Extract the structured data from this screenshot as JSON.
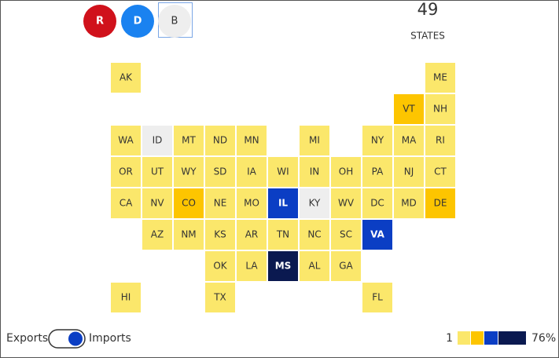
{
  "buttons": [
    {
      "label": "R",
      "color": "#d0111b"
    },
    {
      "label": "D",
      "color": "#1a82f0"
    },
    {
      "label": "B",
      "color": "#eeeeee"
    }
  ],
  "count": {
    "value": 49,
    "label": "STATES"
  },
  "states": [
    {
      "abbr": "AK",
      "color": "#fbe76b"
    },
    {
      "abbr": "ME",
      "color": "#fbe76b"
    },
    {
      "abbr": "VT",
      "color": "#fdc500"
    },
    {
      "abbr": "NH",
      "color": "#fbe76b"
    },
    {
      "abbr": "WA",
      "color": "#fbe76b"
    },
    {
      "abbr": "ID",
      "color": "#eeeeee"
    },
    {
      "abbr": "MT",
      "color": "#fbe76b"
    },
    {
      "abbr": "ND",
      "color": "#fbe76b"
    },
    {
      "abbr": "MN",
      "color": "#fbe76b"
    },
    {
      "abbr": "MI",
      "color": "#fbe76b"
    },
    {
      "abbr": "NY",
      "color": "#fbe76b"
    },
    {
      "abbr": "MA",
      "color": "#fbe76b"
    },
    {
      "abbr": "RI",
      "color": "#fbe76b"
    },
    {
      "abbr": "OR",
      "color": "#fbe76b"
    },
    {
      "abbr": "UT",
      "color": "#fbe76b"
    },
    {
      "abbr": "WY",
      "color": "#fbe76b"
    },
    {
      "abbr": "SD",
      "color": "#fbe76b"
    },
    {
      "abbr": "IA",
      "color": "#fbe76b"
    },
    {
      "abbr": "WI",
      "color": "#fbe76b"
    },
    {
      "abbr": "IN",
      "color": "#fbe76b"
    },
    {
      "abbr": "OH",
      "color": "#fbe76b"
    },
    {
      "abbr": "PA",
      "color": "#fbe76b"
    },
    {
      "abbr": "NJ",
      "color": "#fbe76b"
    },
    {
      "abbr": "CT",
      "color": "#fbe76b"
    },
    {
      "abbr": "CA",
      "color": "#fbe76b"
    },
    {
      "abbr": "NV",
      "color": "#fbe76b"
    },
    {
      "abbr": "CO",
      "color": "#fdc500"
    },
    {
      "abbr": "NE",
      "color": "#fbe76b"
    },
    {
      "abbr": "MO",
      "color": "#fbe76b"
    },
    {
      "abbr": "IL",
      "color": "#0b3ec4"
    },
    {
      "abbr": "KY",
      "color": "#eeeeee"
    },
    {
      "abbr": "WV",
      "color": "#fbe76b"
    },
    {
      "abbr": "DC",
      "color": "#fbe76b"
    },
    {
      "abbr": "MD",
      "color": "#fbe76b"
    },
    {
      "abbr": "DE",
      "color": "#fdc500"
    },
    {
      "abbr": "AZ",
      "color": "#fbe76b"
    },
    {
      "abbr": "NM",
      "color": "#fbe76b"
    },
    {
      "abbr": "KS",
      "color": "#fbe76b"
    },
    {
      "abbr": "AR",
      "color": "#fbe76b"
    },
    {
      "abbr": "TN",
      "color": "#fbe76b"
    },
    {
      "abbr": "NC",
      "color": "#fbe76b"
    },
    {
      "abbr": "SC",
      "color": "#fbe76b"
    },
    {
      "abbr": "VA",
      "color": "#0b3ec4"
    },
    {
      "abbr": "OK",
      "color": "#fbe76b"
    },
    {
      "abbr": "LA",
      "color": "#fbe76b"
    },
    {
      "abbr": "MS",
      "color": "#0a1950"
    },
    {
      "abbr": "AL",
      "color": "#fbe76b"
    },
    {
      "abbr": "GA",
      "color": "#fbe76b"
    },
    {
      "abbr": "HI",
      "color": "#fbe76b"
    },
    {
      "abbr": "TX",
      "color": "#fbe76b"
    },
    {
      "abbr": "FL",
      "color": "#fbe76b"
    }
  ],
  "toggle": {
    "left": "Exports",
    "right": "Imports"
  },
  "legend": {
    "min": "1",
    "max": "76%",
    "colors": [
      "#fbe76b",
      "#fdc500",
      "#0b3ec4",
      "#0a1950"
    ]
  }
}
